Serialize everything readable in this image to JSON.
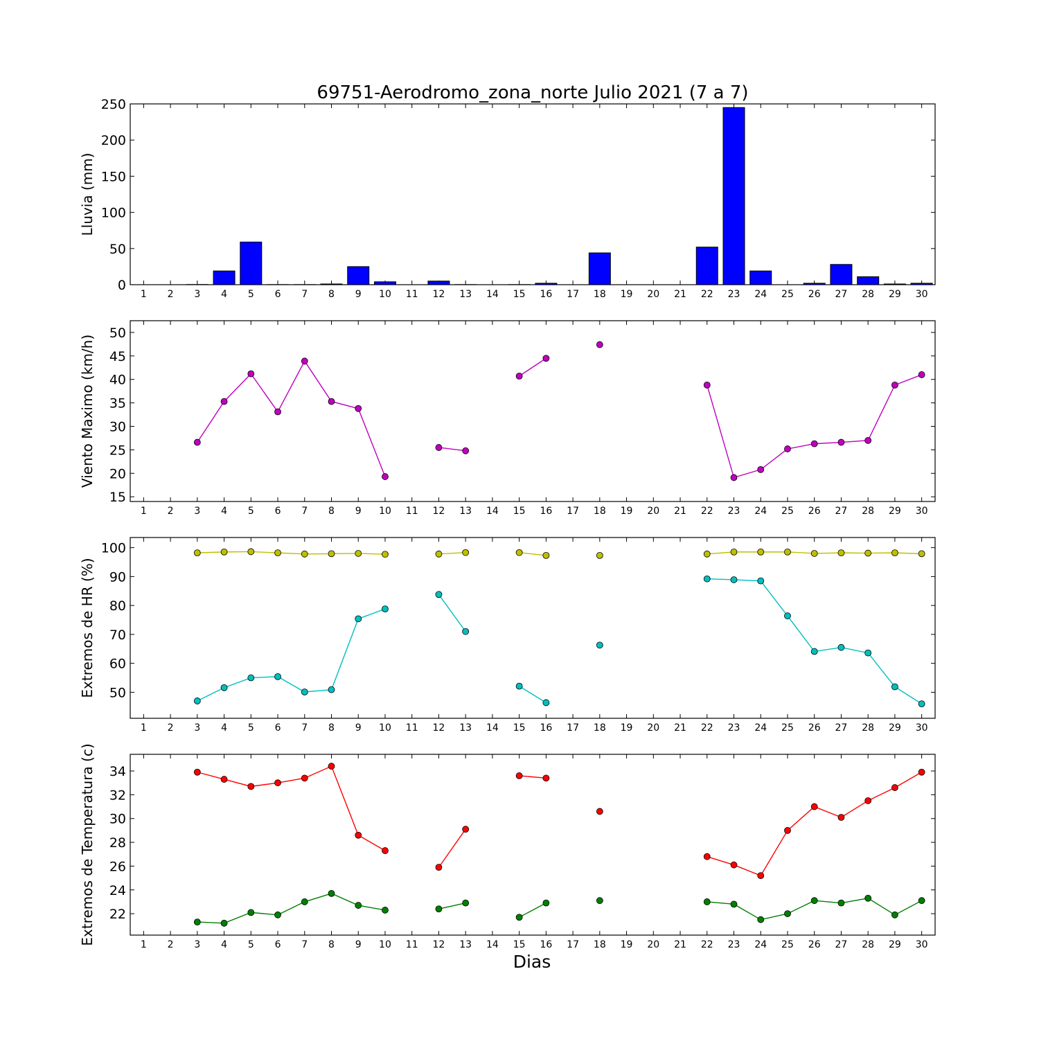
{
  "chart_data": {
    "type": "multi-panel",
    "title": "69751-Aerodromo_zona_norte Julio 2021  (7 a 7)",
    "xlabel": "Dias",
    "days": [
      1,
      2,
      3,
      4,
      5,
      6,
      7,
      8,
      9,
      10,
      11,
      12,
      13,
      14,
      15,
      16,
      17,
      18,
      19,
      20,
      21,
      22,
      23,
      24,
      25,
      26,
      27,
      28,
      29,
      30
    ],
    "panels": [
      {
        "type": "bar",
        "ylabel": "Lluvia (mm)",
        "ylim": [
          0,
          250
        ],
        "yticks": [
          0,
          50,
          100,
          150,
          200,
          250
        ],
        "color": "#0000ff",
        "values": [
          0,
          0,
          0.3,
          19,
          59,
          0.2,
          0.2,
          1,
          25,
          4,
          0,
          5,
          0.2,
          0,
          0.2,
          2,
          0,
          44,
          0,
          0,
          0,
          52,
          245,
          19,
          0,
          2,
          28,
          11,
          1,
          2
        ]
      },
      {
        "type": "line",
        "ylabel": "Viento Maximo (km/h)",
        "ylim": [
          14,
          52.5
        ],
        "yticks": [
          15,
          20,
          25,
          30,
          35,
          40,
          45,
          50
        ],
        "series": [
          {
            "color": "#bf00bf",
            "values": [
              null,
              null,
              26.6,
              35.3,
              41.2,
              33.1,
              43.9,
              35.3,
              33.8,
              19.3,
              null,
              25.5,
              24.8,
              null,
              40.7,
              44.5,
              null,
              47.4,
              null,
              null,
              null,
              38.8,
              19.1,
              20.8,
              25.2,
              26.3,
              26.6,
              27.0,
              38.8,
              41.0
            ]
          }
        ]
      },
      {
        "type": "line",
        "ylabel": "Extremos de HR (%)",
        "ylim": [
          41,
          103.5
        ],
        "yticks": [
          50,
          60,
          70,
          80,
          90,
          100
        ],
        "series": [
          {
            "color": "#bfbf00",
            "values": [
              null,
              null,
              98.2,
              98.5,
              98.6,
              98.2,
              97.8,
              97.9,
              98.0,
              97.7,
              null,
              97.8,
              98.3,
              null,
              98.3,
              97.3,
              null,
              97.3,
              null,
              null,
              null,
              97.8,
              98.5,
              98.5,
              98.5,
              98.0,
              98.2,
              98.1,
              98.2,
              97.9
            ]
          },
          {
            "color": "#00bfbf",
            "values": [
              null,
              null,
              47,
              51.6,
              55.0,
              55.4,
              50.1,
              50.9,
              75.4,
              78.8,
              null,
              83.8,
              71.0,
              null,
              52.1,
              46.4,
              null,
              66.3,
              null,
              null,
              null,
              89.2,
              88.9,
              88.5,
              76.4,
              64.1,
              65.5,
              63.6,
              51.9,
              46.0
            ]
          }
        ]
      },
      {
        "type": "line",
        "ylabel": "Extremos de Temperatura (c)",
        "ylim": [
          20.2,
          35.4
        ],
        "yticks": [
          22,
          24,
          26,
          28,
          30,
          32,
          34
        ],
        "series": [
          {
            "color": "#ff0000",
            "values": [
              null,
              null,
              33.9,
              33.3,
              32.7,
              33.0,
              33.4,
              34.4,
              28.6,
              27.3,
              null,
              25.9,
              29.1,
              null,
              33.6,
              33.4,
              null,
              30.6,
              null,
              null,
              null,
              26.8,
              26.1,
              25.2,
              29.0,
              31.0,
              30.1,
              31.5,
              32.6,
              33.9
            ]
          },
          {
            "color": "#008000",
            "values": [
              null,
              null,
              21.3,
              21.2,
              22.1,
              21.9,
              23.0,
              23.7,
              22.7,
              22.3,
              null,
              22.4,
              22.9,
              null,
              21.7,
              22.9,
              null,
              23.1,
              null,
              null,
              null,
              23.0,
              22.8,
              21.5,
              22.0,
              23.1,
              22.9,
              23.3,
              21.9,
              23.1
            ]
          }
        ]
      }
    ]
  }
}
